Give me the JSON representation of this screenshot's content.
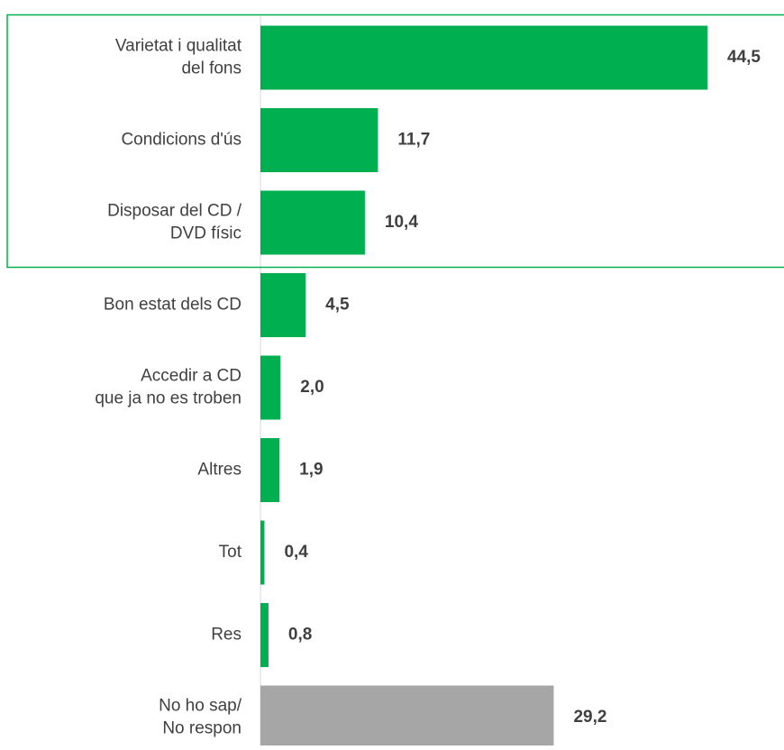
{
  "chart_data": {
    "type": "bar",
    "orientation": "horizontal",
    "categories": [
      [
        "Varietat i qualitat",
        "del fons"
      ],
      [
        "Condicions d'ús"
      ],
      [
        "Disposar del CD /",
        "DVD físic"
      ],
      [
        "Bon estat dels CD"
      ],
      [
        "Accedir a CD",
        "que ja no es troben"
      ],
      [
        "Altres"
      ],
      [
        "Tot"
      ],
      [
        "Res"
      ],
      [
        "No ho sap/",
        "No respon"
      ]
    ],
    "values": [
      44.5,
      11.7,
      10.4,
      4.5,
      2.0,
      1.9,
      0.4,
      0.8,
      29.2
    ],
    "value_labels": [
      "44,5",
      "11,7",
      "10,4",
      "4,5",
      "2,0",
      "1,9",
      "0,4",
      "0,8",
      "29,2"
    ],
    "bar_colors": [
      "#00b050",
      "#00b050",
      "#00b050",
      "#00b050",
      "#00b050",
      "#00b050",
      "#00b050",
      "#00b050",
      "#a6a6a6"
    ],
    "highlight_rows": [
      0,
      1,
      2
    ],
    "highlight_color": "#00b050",
    "axis_color": "#d9d9d9",
    "title": "",
    "xlabel": "",
    "ylabel": "",
    "xlim": [
      0,
      44.5
    ],
    "grid": false,
    "legend": "none"
  }
}
